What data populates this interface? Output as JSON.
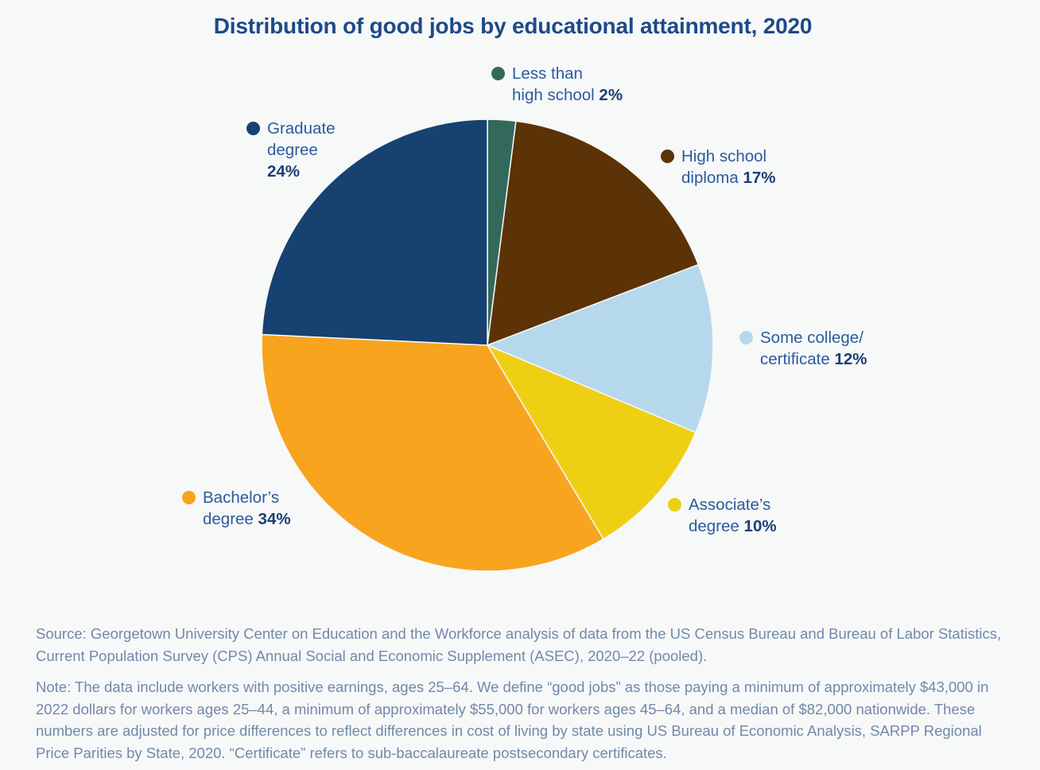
{
  "title": "Distribution of good jobs by educational attainment, 2020",
  "chart_data": {
    "type": "pie",
    "title": "Distribution of good jobs by educational attainment, 2020",
    "units": "percent",
    "start_angle_deg": 0,
    "direction": "clockwise",
    "slices": [
      {
        "label": "Less than high school",
        "value": 2,
        "color": "#33695C"
      },
      {
        "label": "High school diploma",
        "value": 17,
        "color": "#5B3307"
      },
      {
        "label": "Some college/certificate",
        "value": 12,
        "color": "#B6D8EC"
      },
      {
        "label": "Associate’s degree",
        "value": 10,
        "color": "#EFCF14"
      },
      {
        "label": "Bachelor’s degree",
        "value": 34,
        "color": "#F8A41E"
      },
      {
        "label": "Graduate degree",
        "value": 24,
        "color": "#164171"
      }
    ],
    "legend_position": "around-pie",
    "background_color": "#F7F8F8"
  },
  "legend": {
    "less_than_hs": {
      "line1": "Less than",
      "line2": "high school",
      "value": "2%",
      "color": "#33695C"
    },
    "high_school": {
      "line1": "High school",
      "line2": "diploma",
      "value": "17%",
      "color": "#5B3307"
    },
    "some_college": {
      "line1": "Some college/",
      "line2": "certificate",
      "value": "12%",
      "color": "#B6D8EC"
    },
    "associates": {
      "line1": "Associate’s",
      "line2": "degree",
      "value": "10%",
      "color": "#EFCF14"
    },
    "bachelors": {
      "line1": "Bachelor’s",
      "line2": "degree",
      "value": "34%",
      "color": "#F8A41E"
    },
    "graduate": {
      "line1": "Graduate",
      "line2": "degree",
      "value": "24%",
      "color": "#164171"
    }
  },
  "source": "Source: Georgetown University Center on Education and the Workforce analysis of data from the US Census Bureau and Bureau of Labor Statistics, Current Population Survey (CPS) Annual Social and Economic Supplement (ASEC), 2020–22 (pooled).",
  "note": "Note: The data include workers with positive earnings, ages 25–64. We define “good jobs” as those paying a minimum of approximately $43,000 in 2022 dollars for workers ages 25–44, a minimum of approximately $55,000 for workers ages 45–64, and a median of $82,000 nationwide. These numbers are adjusted for price differences to reflect differences in cost of living by state using US Bureau of Economic Analysis, SARPP Regional Price Parities by State, 2020. “Certificate” refers to sub-baccalaureate postsecondary certificates."
}
